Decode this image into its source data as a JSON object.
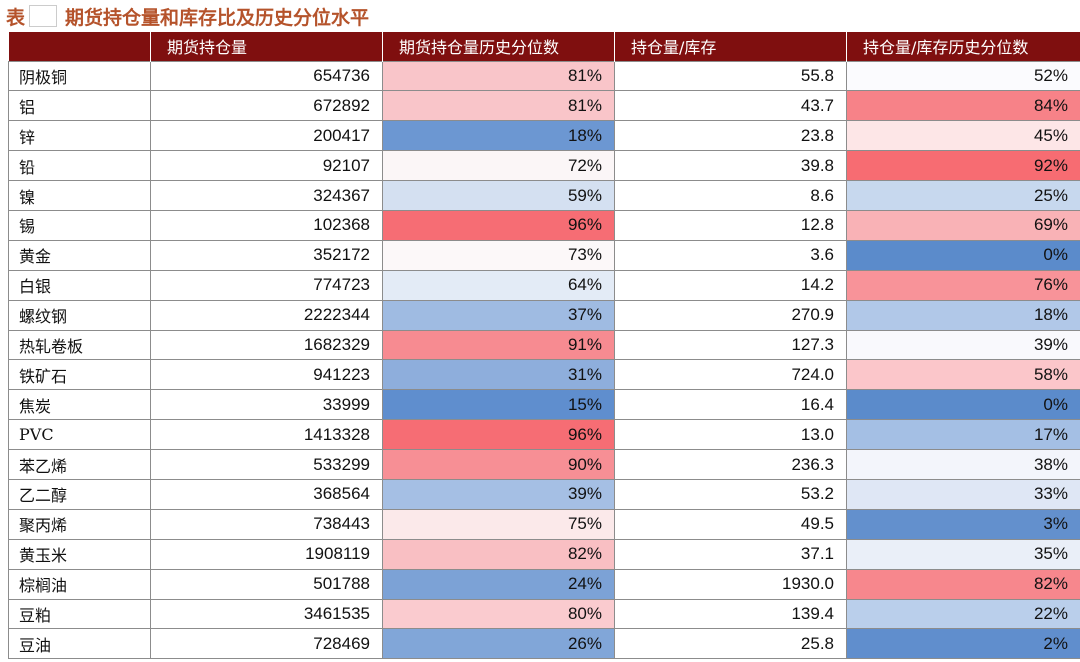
{
  "title": {
    "prefix": "表",
    "text": "期货持仓量和库存比及历史分位水平"
  },
  "table": {
    "columns": [
      "",
      "期货持仓量",
      "期货持仓量历史分位数",
      "持仓量/库存",
      "持仓量/库存历史分位数"
    ],
    "rows": [
      {
        "name": "阴极铜",
        "oi": "654736",
        "oi_pct": "81%",
        "ratio": "55.8",
        "ratio_pct": "52%",
        "oi_bg": "#f9c5c9",
        "ratio_bg": "#fbfbfe"
      },
      {
        "name": "铝",
        "oi": "672892",
        "oi_pct": "81%",
        "ratio": "43.7",
        "ratio_pct": "84%",
        "oi_bg": "#f9c5c9",
        "ratio_bg": "#f78288"
      },
      {
        "name": "锌",
        "oi": "200417",
        "oi_pct": "18%",
        "ratio": "23.8",
        "ratio_pct": "45%",
        "oi_bg": "#6c97d2",
        "ratio_bg": "#fde6e7"
      },
      {
        "name": "铅",
        "oi": "92107",
        "oi_pct": "72%",
        "ratio": "39.8",
        "ratio_pct": "92%",
        "oi_bg": "#fbf6f7",
        "ratio_bg": "#f76c72"
      },
      {
        "name": "镍",
        "oi": "324367",
        "oi_pct": "59%",
        "ratio": "8.6",
        "ratio_pct": "25%",
        "oi_bg": "#d4e0f1",
        "ratio_bg": "#c7d8ee"
      },
      {
        "name": "锡",
        "oi": "102368",
        "oi_pct": "96%",
        "ratio": "12.8",
        "ratio_pct": "69%",
        "oi_bg": "#f66d74",
        "ratio_bg": "#f9b2b6"
      },
      {
        "name": "黄金",
        "oi": "352172",
        "oi_pct": "73%",
        "ratio": "3.6",
        "ratio_pct": "0%",
        "oi_bg": "#fcf8f9",
        "ratio_bg": "#5b8bcb"
      },
      {
        "name": "白银",
        "oi": "774723",
        "oi_pct": "64%",
        "ratio": "14.2",
        "ratio_pct": "76%",
        "oi_bg": "#e3ebf6",
        "ratio_bg": "#f89399"
      },
      {
        "name": "螺纹钢",
        "oi": "2222344",
        "oi_pct": "37%",
        "ratio": "270.9",
        "ratio_pct": "18%",
        "oi_bg": "#9fbbe2",
        "ratio_bg": "#b1c8e8"
      },
      {
        "name": "热轧卷板",
        "oi": "1682329",
        "oi_pct": "91%",
        "ratio": "127.3",
        "ratio_pct": "39%",
        "oi_bg": "#f78b91",
        "ratio_bg": "#f9f9fd"
      },
      {
        "name": "铁矿石",
        "oi": "941223",
        "oi_pct": "31%",
        "ratio": "724.0",
        "ratio_pct": "58%",
        "oi_bg": "#8eaedc",
        "ratio_bg": "#fbc6ca"
      },
      {
        "name": "焦炭",
        "oi": "33999",
        "oi_pct": "15%",
        "ratio": "16.4",
        "ratio_pct": "0%",
        "oi_bg": "#5f8ece",
        "ratio_bg": "#5b8bcb"
      },
      {
        "name": "PVC",
        "oi": "1413328",
        "oi_pct": "96%",
        "ratio": "13.0",
        "ratio_pct": "17%",
        "oi_bg": "#f66d74",
        "ratio_bg": "#a4bfe4"
      },
      {
        "name": "苯乙烯",
        "oi": "533299",
        "oi_pct": "90%",
        "ratio": "236.3",
        "ratio_pct": "38%",
        "oi_bg": "#f78f95",
        "ratio_bg": "#f3f5fb"
      },
      {
        "name": "乙二醇",
        "oi": "368564",
        "oi_pct": "39%",
        "ratio": "53.2",
        "ratio_pct": "33%",
        "oi_bg": "#a5bfe4",
        "ratio_bg": "#dfe7f5"
      },
      {
        "name": "聚丙烯",
        "oi": "738443",
        "oi_pct": "75%",
        "ratio": "49.5",
        "ratio_pct": "3%",
        "oi_bg": "#fbe9ea",
        "ratio_bg": "#6390cd"
      },
      {
        "name": "黄玉米",
        "oi": "1908119",
        "oi_pct": "82%",
        "ratio": "37.1",
        "ratio_pct": "35%",
        "oi_bg": "#f9bfc3",
        "ratio_bg": "#eaeff8"
      },
      {
        "name": "棕榈油",
        "oi": "501788",
        "oi_pct": "24%",
        "ratio": "1930.0",
        "ratio_pct": "82%",
        "oi_bg": "#7ca2d6",
        "ratio_bg": "#f7878d"
      },
      {
        "name": "豆粕",
        "oi": "3461535",
        "oi_pct": "80%",
        "ratio": "139.4",
        "ratio_pct": "22%",
        "oi_bg": "#facbcf",
        "ratio_bg": "#bacfeb"
      },
      {
        "name": "豆油",
        "oi": "728469",
        "oi_pct": "26%",
        "ratio": "25.8",
        "ratio_pct": "2%",
        "oi_bg": "#81a6d8",
        "ratio_bg": "#608ecd"
      }
    ]
  }
}
